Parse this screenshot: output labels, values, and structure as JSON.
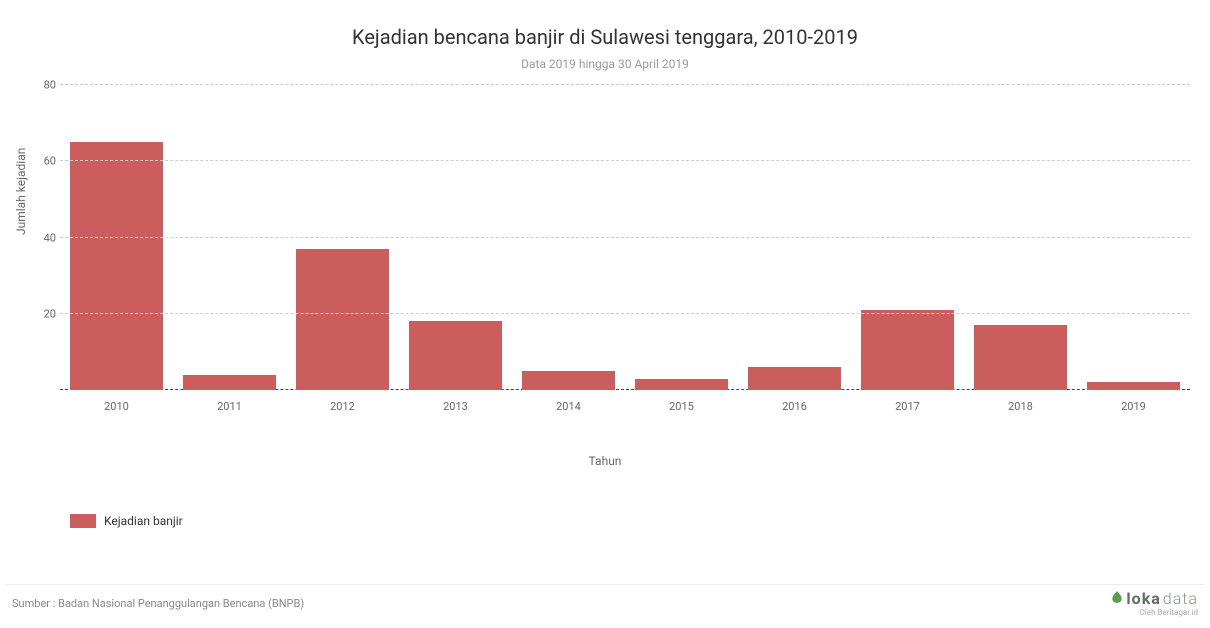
{
  "chart": {
    "type": "bar",
    "title": "Kejadian bencana banjir di Sulawesi tenggara, 2010-2019",
    "title_fontsize": 20,
    "title_color": "#333333",
    "subtitle": "Data 2019 hingga 30 April 2019",
    "subtitle_fontsize": 12,
    "subtitle_color": "#999999",
    "background_color": "#ffffff",
    "bar_color": "#cb5d5d",
    "grid_color": "#cccccc",
    "baseline_color": "#444444",
    "tick_color": "#666666",
    "bar_width": 0.82,
    "x_label": "Tahun",
    "y_label": "Jumlah kejadian",
    "label_fontsize": 12,
    "tick_fontsize": 11,
    "ylim": [
      0,
      80
    ],
    "ytick_step": 20,
    "yticks": [
      20,
      40,
      60,
      80
    ],
    "categories": [
      "2010",
      "2011",
      "2012",
      "2013",
      "2014",
      "2015",
      "2016",
      "2017",
      "2018",
      "2019"
    ],
    "values": [
      65,
      4,
      37,
      18,
      5,
      3,
      6,
      21,
      17,
      2
    ]
  },
  "legend": {
    "swatch_color": "#cb5d5d",
    "label": "Kejadian banjir",
    "label_fontsize": 12
  },
  "footer": {
    "source": "Sumber : Badan Nasional Penanggulangan Bencana (BNPB)",
    "source_color": "#888888",
    "brand_bold": "loka",
    "brand_light": "data",
    "brand_sub": "Oleh Beritagar.id",
    "brand_color_bold": "#5f6e5d",
    "brand_color_light": "#8a968a",
    "brand_leaf_color": "#5a9e4a"
  }
}
